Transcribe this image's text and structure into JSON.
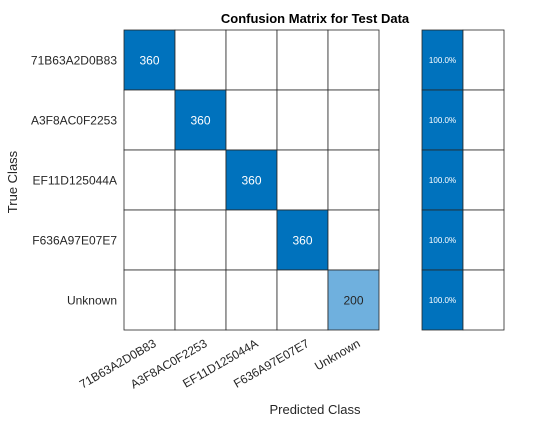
{
  "chart_data": {
    "type": "heatmap",
    "title": "Confusion Matrix for Test Data",
    "xlabel": "Predicted Class",
    "ylabel": "True Class",
    "row_labels": [
      "71B63A2D0B83",
      "A3F8AC0F2253",
      "EF11D125044A",
      "F636A97E07E7",
      "Unknown"
    ],
    "col_labels": [
      "71B63A2D0B83",
      "A3F8AC0F2253",
      "EF11D125044A",
      "F636A97E07E7",
      "Unknown"
    ],
    "matrix": [
      [
        360,
        0,
        0,
        0,
        0
      ],
      [
        0,
        360,
        0,
        0,
        0
      ],
      [
        0,
        0,
        360,
        0,
        0
      ],
      [
        0,
        0,
        0,
        360,
        0
      ],
      [
        0,
        0,
        0,
        0,
        200
      ]
    ],
    "row_summary": {
      "correct_percent": [
        "100.0%",
        "100.0%",
        "100.0%",
        "100.0%",
        "100.0%"
      ],
      "incorrect_percent": [
        "",
        "",
        "",
        "",
        ""
      ]
    },
    "colors": {
      "strong": "#0072bd",
      "light": "#6fb0de",
      "grid": "#262626",
      "text_on_dark": "#ffffff",
      "text_on_light": "#262626"
    }
  }
}
